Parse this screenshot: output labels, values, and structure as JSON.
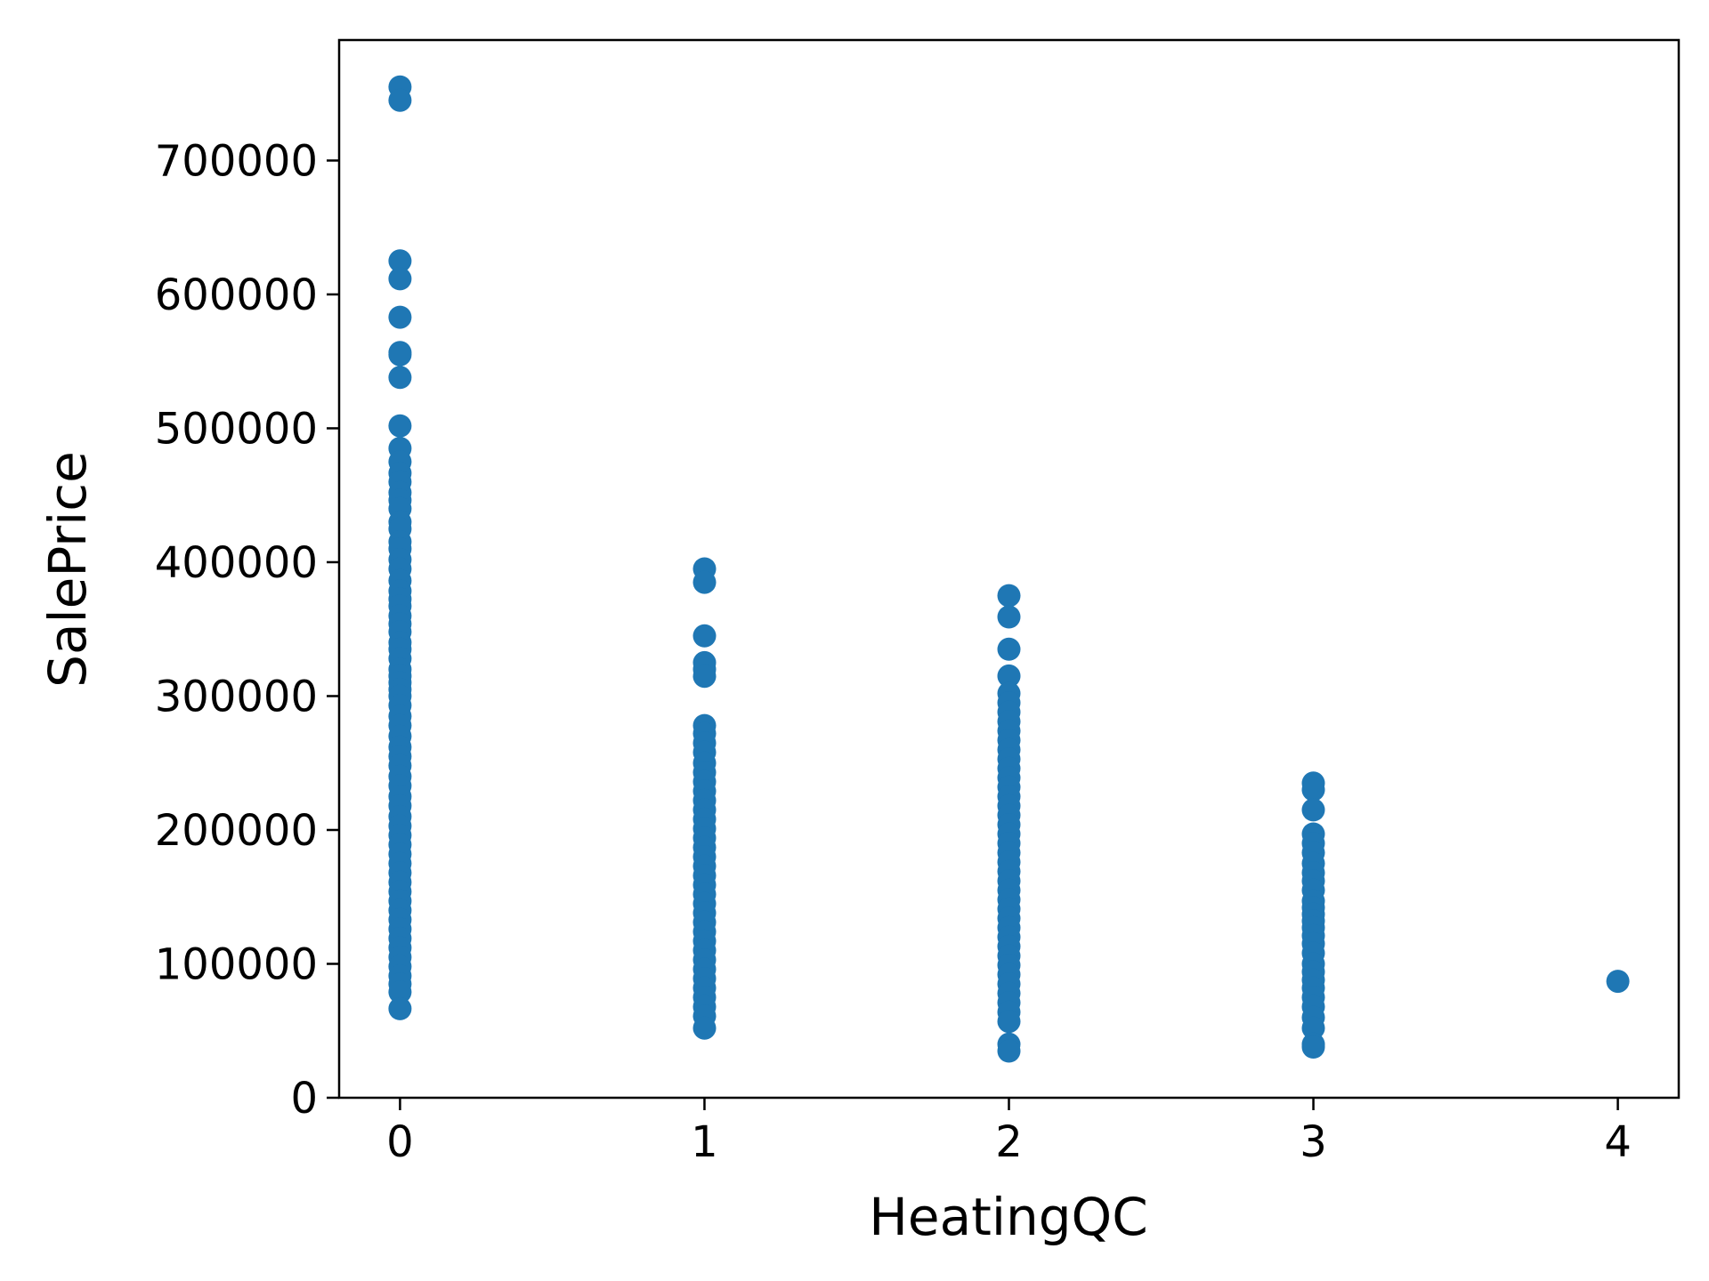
{
  "chart_data": {
    "type": "scatter",
    "title": "",
    "xlabel": "HeatingQC",
    "ylabel": "SalePrice",
    "xlim": [
      -0.2,
      4.2
    ],
    "ylim": [
      0,
      790000
    ],
    "xticks": [
      0,
      1,
      2,
      3,
      4
    ],
    "yticks": [
      0,
      100000,
      200000,
      300000,
      400000,
      500000,
      600000,
      700000
    ],
    "xtick_labels": [
      "0",
      "1",
      "2",
      "3",
      "4"
    ],
    "ytick_labels": [
      "0",
      "100000",
      "200000",
      "300000",
      "400000",
      "500000",
      "600000",
      "700000"
    ],
    "grid": false,
    "legend": "none",
    "marker_color": "#1f77b4",
    "series": [
      {
        "points": [
          [
            0,
            755000
          ],
          [
            0,
            745000
          ],
          [
            0,
            625000
          ],
          [
            0,
            611657
          ],
          [
            0,
            582933
          ],
          [
            0,
            556581
          ],
          [
            0,
            555000
          ],
          [
            0,
            538000
          ],
          [
            0,
            501837
          ],
          [
            0,
            485000
          ],
          [
            0,
            475000
          ],
          [
            0,
            466500
          ],
          [
            0,
            460000
          ],
          [
            0,
            451950
          ],
          [
            0,
            446261
          ],
          [
            0,
            440000
          ],
          [
            0,
            430000
          ],
          [
            0,
            424870
          ],
          [
            0,
            415298
          ],
          [
            0,
            410000
          ],
          [
            0,
            402000
          ],
          [
            0,
            395000
          ],
          [
            0,
            386250
          ],
          [
            0,
            378500
          ],
          [
            0,
            372500
          ],
          [
            0,
            367294
          ],
          [
            0,
            360000
          ],
          [
            0,
            354000
          ],
          [
            0,
            348000
          ],
          [
            0,
            340000
          ],
          [
            0,
            335000
          ],
          [
            0,
            328000
          ],
          [
            0,
            320000
          ],
          [
            0,
            315000
          ],
          [
            0,
            310000
          ],
          [
            0,
            305000
          ],
          [
            0,
            300000
          ],
          [
            0,
            293000
          ],
          [
            0,
            285000
          ],
          [
            0,
            278000
          ],
          [
            0,
            270000
          ],
          [
            0,
            262000
          ],
          [
            0,
            255000
          ],
          [
            0,
            248000
          ],
          [
            0,
            240000
          ],
          [
            0,
            233000
          ],
          [
            0,
            225000
          ],
          [
            0,
            218000
          ],
          [
            0,
            210000
          ],
          [
            0,
            203000
          ],
          [
            0,
            196000
          ],
          [
            0,
            189000
          ],
          [
            0,
            182000
          ],
          [
            0,
            175000
          ],
          [
            0,
            168000
          ],
          [
            0,
            161000
          ],
          [
            0,
            154000
          ],
          [
            0,
            147000
          ],
          [
            0,
            140000
          ],
          [
            0,
            133000
          ],
          [
            0,
            126000
          ],
          [
            0,
            119000
          ],
          [
            0,
            112000
          ],
          [
            0,
            105000
          ],
          [
            0,
            98000
          ],
          [
            0,
            91000
          ],
          [
            0,
            85000
          ],
          [
            0,
            79000
          ],
          [
            0,
            66500
          ],
          [
            1,
            395000
          ],
          [
            1,
            385000
          ],
          [
            1,
            345000
          ],
          [
            1,
            325000
          ],
          [
            1,
            320000
          ],
          [
            1,
            314813
          ],
          [
            1,
            278000
          ],
          [
            1,
            272000
          ],
          [
            1,
            265000
          ],
          [
            1,
            258000
          ],
          [
            1,
            250000
          ],
          [
            1,
            243000
          ],
          [
            1,
            236000
          ],
          [
            1,
            229000
          ],
          [
            1,
            222000
          ],
          [
            1,
            215000
          ],
          [
            1,
            208000
          ],
          [
            1,
            201000
          ],
          [
            1,
            194000
          ],
          [
            1,
            187000
          ],
          [
            1,
            180000
          ],
          [
            1,
            173000
          ],
          [
            1,
            166000
          ],
          [
            1,
            159000
          ],
          [
            1,
            152000
          ],
          [
            1,
            145000
          ],
          [
            1,
            138000
          ],
          [
            1,
            131000
          ],
          [
            1,
            124000
          ],
          [
            1,
            117000
          ],
          [
            1,
            110000
          ],
          [
            1,
            103000
          ],
          [
            1,
            96000
          ],
          [
            1,
            89000
          ],
          [
            1,
            82000
          ],
          [
            1,
            75000
          ],
          [
            1,
            68000
          ],
          [
            1,
            61000
          ],
          [
            1,
            52000
          ],
          [
            2,
            375000
          ],
          [
            2,
            359100
          ],
          [
            2,
            335000
          ],
          [
            2,
            315000
          ],
          [
            2,
            302000
          ],
          [
            2,
            295000
          ],
          [
            2,
            288000
          ],
          [
            2,
            281000
          ],
          [
            2,
            274000
          ],
          [
            2,
            267000
          ],
          [
            2,
            260000
          ],
          [
            2,
            253000
          ],
          [
            2,
            246000
          ],
          [
            2,
            239000
          ],
          [
            2,
            232000
          ],
          [
            2,
            225000
          ],
          [
            2,
            218000
          ],
          [
            2,
            211000
          ],
          [
            2,
            204000
          ],
          [
            2,
            197000
          ],
          [
            2,
            190000
          ],
          [
            2,
            183000
          ],
          [
            2,
            176000
          ],
          [
            2,
            169000
          ],
          [
            2,
            162000
          ],
          [
            2,
            155000
          ],
          [
            2,
            148000
          ],
          [
            2,
            141000
          ],
          [
            2,
            134000
          ],
          [
            2,
            127000
          ],
          [
            2,
            120000
          ],
          [
            2,
            113000
          ],
          [
            2,
            106000
          ],
          [
            2,
            99000
          ],
          [
            2,
            92000
          ],
          [
            2,
            85000
          ],
          [
            2,
            78000
          ],
          [
            2,
            71000
          ],
          [
            2,
            64000
          ],
          [
            2,
            57000
          ],
          [
            2,
            40000
          ],
          [
            2,
            34900
          ],
          [
            3,
            235000
          ],
          [
            3,
            230000
          ],
          [
            3,
            215000
          ],
          [
            3,
            197000
          ],
          [
            3,
            190000
          ],
          [
            3,
            183000
          ],
          [
            3,
            175000
          ],
          [
            3,
            168000
          ],
          [
            3,
            162000
          ],
          [
            3,
            155000
          ],
          [
            3,
            147000
          ],
          [
            3,
            142000
          ],
          [
            3,
            137000
          ],
          [
            3,
            132000
          ],
          [
            3,
            127000
          ],
          [
            3,
            121000
          ],
          [
            3,
            115000
          ],
          [
            3,
            108000
          ],
          [
            3,
            100000
          ],
          [
            3,
            94000
          ],
          [
            3,
            88000
          ],
          [
            3,
            82000
          ],
          [
            3,
            75000
          ],
          [
            3,
            68000
          ],
          [
            3,
            60000
          ],
          [
            3,
            52000
          ],
          [
            3,
            40000
          ],
          [
            3,
            37900
          ],
          [
            4,
            87000
          ]
        ]
      }
    ]
  }
}
